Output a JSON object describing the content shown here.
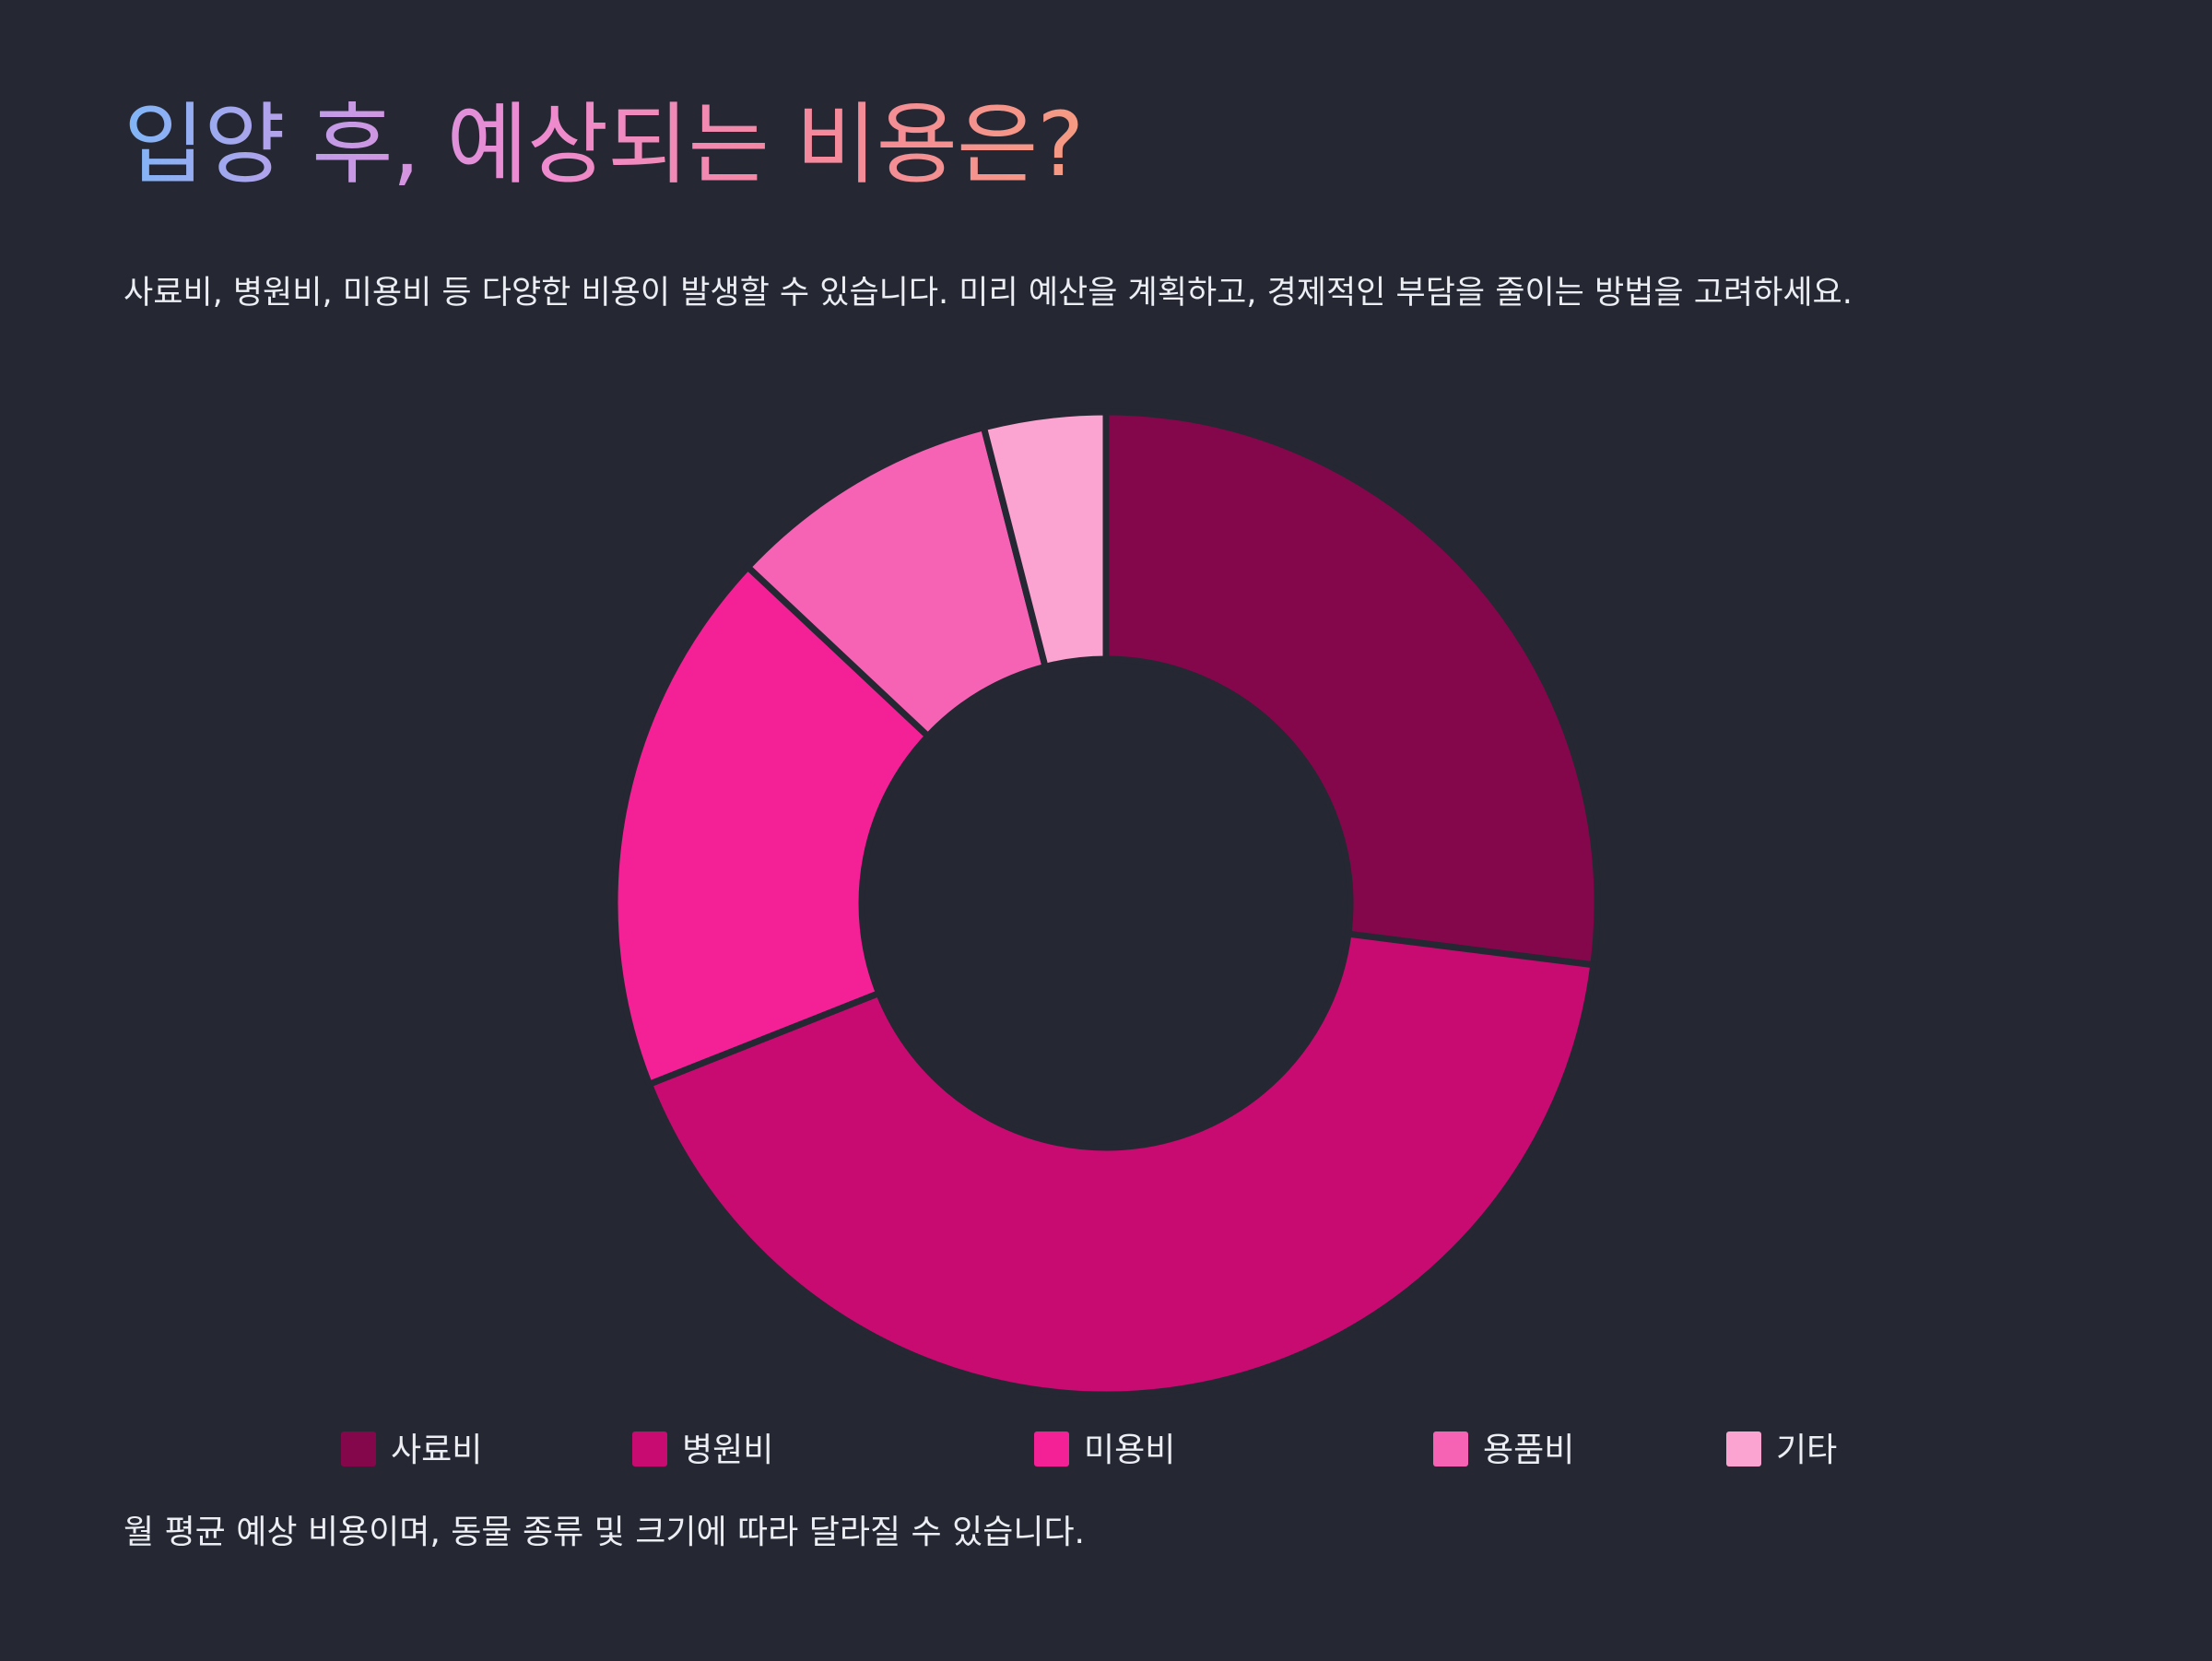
{
  "header": {
    "title": "입양 후, 예상되는 비용은?",
    "subtitle": "사료비, 병원비, 미용비 등 다양한 비용이 발생할 수 있습니다. 미리 예산을 계획하고, 경제적인 부담을 줄이는 방법을 고려하세요."
  },
  "chart_data": {
    "type": "pie",
    "style": "donut",
    "categories": [
      "사료비",
      "병원비",
      "미용비",
      "용품비",
      "기타"
    ],
    "values": [
      27,
      42,
      18,
      9,
      4
    ],
    "colors": [
      "#84074b",
      "#c70b71",
      "#f42196",
      "#f763b4",
      "#fba3d1"
    ],
    "legend_position": "bottom",
    "background": "#252733"
  },
  "footer": {
    "note": "월 평균 예상 비용이며, 동물 종류 및 크기에 따라 달라질 수 있습니다."
  }
}
